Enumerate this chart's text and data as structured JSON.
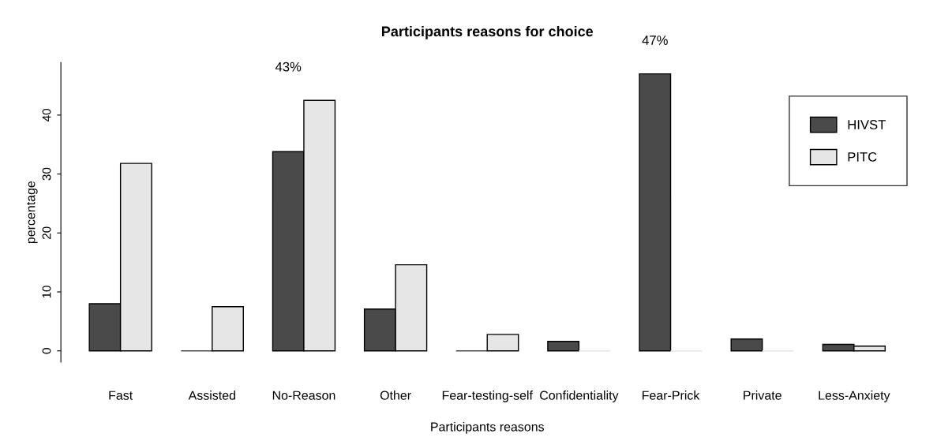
{
  "chart_data": {
    "type": "bar",
    "title": "Participants reasons for choice",
    "xlabel": "Participants reasons",
    "ylabel": "percentage",
    "categories": [
      "Fast",
      "Assisted",
      "No-Reason",
      "Other",
      "Fear-testing-self",
      "Confidentiality",
      "Fear-Prick",
      "Private",
      "Less-Anxiety"
    ],
    "series": [
      {
        "name": "HIVST",
        "color": "#4a4a4a",
        "values": [
          8.0,
          0,
          33.8,
          7.1,
          0,
          1.6,
          47.0,
          2.0,
          1.1
        ]
      },
      {
        "name": "PITC",
        "color": "#e6e6e6",
        "values": [
          31.8,
          7.5,
          42.5,
          14.6,
          2.8,
          0,
          0,
          0,
          0.8
        ]
      }
    ],
    "annotations": [
      {
        "text": "43%",
        "x": "No-Reason",
        "y": 42.5
      },
      {
        "text": "47%",
        "x": "Fear-Prick",
        "y": 47.0
      }
    ],
    "ylim": [
      -1.9,
      48.9
    ],
    "yticks": [
      0,
      10,
      20,
      30,
      40
    ],
    "grid": false,
    "legend": "top right"
  }
}
